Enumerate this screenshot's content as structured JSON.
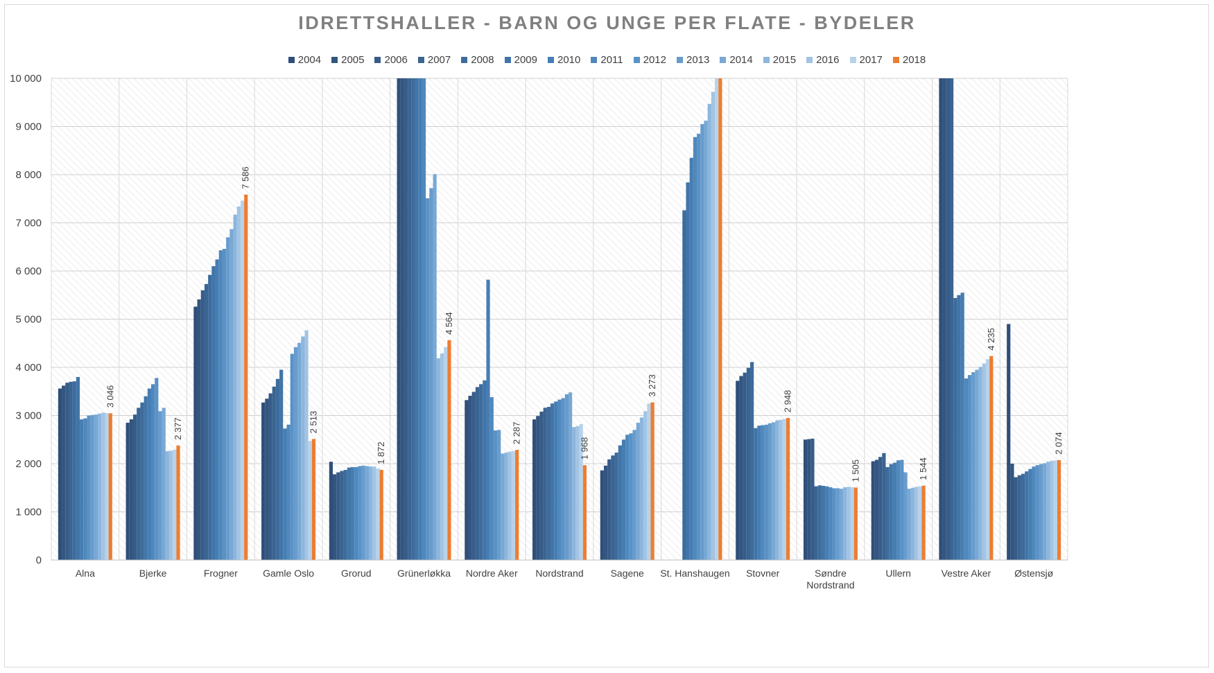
{
  "chart_data": {
    "type": "bar",
    "title": "IDRETTSHALLER - BARN OG UNGE PER FLATE - BYDELER",
    "xlabel": "",
    "ylabel": "",
    "ylim": [
      0,
      10000
    ],
    "yticks": [
      "0",
      "1 000",
      "2 000",
      "3 000",
      "4 000",
      "5 000",
      "6 000",
      "7 000",
      "8 000",
      "9 000",
      "10 000"
    ],
    "grid": true,
    "legend_position": "top",
    "categories": [
      [
        "Alna"
      ],
      [
        "Bjerke"
      ],
      [
        "Frogner"
      ],
      [
        "Gamle Oslo"
      ],
      [
        "Grorud"
      ],
      [
        "Grünerløkka"
      ],
      [
        "Nordre Aker"
      ],
      [
        "Nordstrand"
      ],
      [
        "Sagene"
      ],
      [
        "St. Hanshaugen"
      ],
      [
        "Stovner"
      ],
      [
        "Søndre",
        "Nordstrand"
      ],
      [
        "Ullern"
      ],
      [
        "Vestre Aker"
      ],
      [
        "Østensjø"
      ]
    ],
    "series": [
      {
        "name": "2004",
        "color": "#2f4f7a",
        "values": [
          3560,
          2850,
          5260,
          3270,
          2040,
          10000,
          3320,
          2920,
          1860,
          null,
          3720,
          2500,
          2050,
          10000,
          4900
        ]
      },
      {
        "name": "2005",
        "color": "#33557f",
        "values": [
          3620,
          2920,
          5410,
          3350,
          1780,
          10000,
          3410,
          2990,
          1960,
          null,
          3820,
          2510,
          2080,
          10000,
          2000
        ]
      },
      {
        "name": "2006",
        "color": "#365c88",
        "values": [
          3680,
          3020,
          5600,
          3460,
          1820,
          10000,
          3490,
          3080,
          2090,
          null,
          3890,
          2520,
          2140,
          10000,
          1720
        ]
      },
      {
        "name": "2007",
        "color": "#3a6491",
        "values": [
          3700,
          3160,
          5730,
          3600,
          1850,
          10000,
          3590,
          3160,
          2170,
          null,
          3990,
          1530,
          2220,
          10000,
          1760
        ]
      },
      {
        "name": "2008",
        "color": "#3d6c9c",
        "values": [
          3710,
          3270,
          5920,
          3760,
          1870,
          10000,
          3650,
          3180,
          2230,
          7260,
          4110,
          1550,
          1930,
          5440,
          1790
        ]
      },
      {
        "name": "2009",
        "color": "#4175a8",
        "values": [
          3800,
          3400,
          6100,
          3950,
          1920,
          10000,
          3730,
          3250,
          2380,
          7840,
          2740,
          1540,
          1990,
          5500,
          1840
        ]
      },
      {
        "name": "2010",
        "color": "#467eb3",
        "values": [
          2920,
          3560,
          6240,
          2730,
          1930,
          10000,
          5820,
          3290,
          2500,
          8350,
          2790,
          1530,
          2020,
          5550,
          1890
        ]
      },
      {
        "name": "2011",
        "color": "#4f88bd",
        "values": [
          2940,
          3650,
          6430,
          2810,
          1930,
          10000,
          3380,
          3330,
          2600,
          8780,
          2800,
          1510,
          2070,
          3770,
          1940
        ]
      },
      {
        "name": "2012",
        "color": "#5a92c6",
        "values": [
          3000,
          3780,
          6460,
          4280,
          1950,
          7510,
          2690,
          3360,
          2630,
          8850,
          2810,
          1490,
          2080,
          3840,
          1970
        ]
      },
      {
        "name": "2013",
        "color": "#679ccd",
        "values": [
          3010,
          3090,
          6700,
          4420,
          1960,
          7720,
          2700,
          3440,
          2700,
          9050,
          2840,
          1490,
          1820,
          3900,
          1990
        ]
      },
      {
        "name": "2014",
        "color": "#78a8d5",
        "values": [
          3020,
          3160,
          6870,
          4510,
          1950,
          8010,
          2210,
          3480,
          2850,
          9120,
          2860,
          1480,
          1480,
          3950,
          2010
        ]
      },
      {
        "name": "2015",
        "color": "#8db6dd",
        "values": [
          3040,
          2260,
          7170,
          4640,
          1940,
          4190,
          2230,
          2760,
          2960,
          9470,
          2900,
          1510,
          1500,
          4010,
          2040
        ]
      },
      {
        "name": "2016",
        "color": "#a3c4e4",
        "values": [
          3060,
          2270,
          7340,
          4770,
          1940,
          4290,
          2250,
          2780,
          3090,
          9720,
          2910,
          1520,
          1520,
          4080,
          2060
        ]
      },
      {
        "name": "2017",
        "color": "#b8d2ea",
        "values": [
          3050,
          2290,
          7460,
          2470,
          1900,
          4420,
          2260,
          2820,
          3250,
          10000,
          2930,
          1510,
          1530,
          4170,
          2070
        ]
      },
      {
        "name": "2018",
        "color": "#ed7d31",
        "values": [
          3046,
          2377,
          7586,
          2513,
          1872,
          4564,
          2287,
          1968,
          3273,
          10000,
          2948,
          1505,
          1544,
          4235,
          2074
        ]
      }
    ],
    "data_labels": [
      "3 046",
      "2 377",
      "7 586",
      "2 513",
      "1 872",
      "4 564",
      "2 287",
      "1 968",
      "3 273",
      null,
      "2 948",
      "1 505",
      "1 544",
      "4 235",
      "2 074"
    ]
  }
}
